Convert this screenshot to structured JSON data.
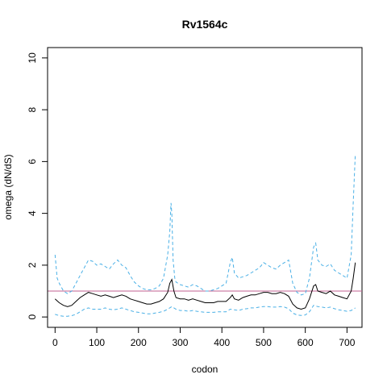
{
  "chart_data": {
    "type": "line",
    "title": "Rv1564c",
    "xlabel": "codon",
    "ylabel": "omega (dN/dS)",
    "xlim": [
      -18,
      736
    ],
    "ylim": [
      -0.4,
      10.4
    ],
    "xticks": [
      0,
      100,
      200,
      300,
      400,
      500,
      600,
      700
    ],
    "yticks": [
      0,
      2,
      4,
      6,
      8,
      10
    ],
    "reference_line": {
      "y": 1,
      "color": "#c06090"
    },
    "grid": false,
    "series": [
      {
        "role": "estimate",
        "color": "#000000",
        "style": "solid",
        "x": [
          0,
          10,
          20,
          30,
          40,
          50,
          60,
          70,
          80,
          90,
          100,
          110,
          120,
          130,
          140,
          150,
          160,
          170,
          180,
          190,
          200,
          210,
          220,
          230,
          240,
          250,
          260,
          270,
          275,
          280,
          285,
          290,
          300,
          310,
          320,
          330,
          340,
          350,
          360,
          370,
          380,
          390,
          400,
          410,
          420,
          425,
          430,
          440,
          450,
          460,
          470,
          480,
          490,
          500,
          510,
          520,
          530,
          540,
          550,
          560,
          570,
          580,
          590,
          600,
          610,
          620,
          625,
          630,
          640,
          650,
          660,
          670,
          680,
          690,
          700,
          710,
          715,
          720
        ],
        "y": [
          0.7,
          0.55,
          0.45,
          0.4,
          0.45,
          0.6,
          0.75,
          0.85,
          0.95,
          0.9,
          0.85,
          0.8,
          0.85,
          0.8,
          0.75,
          0.8,
          0.85,
          0.8,
          0.7,
          0.65,
          0.6,
          0.55,
          0.5,
          0.5,
          0.55,
          0.6,
          0.7,
          0.95,
          1.3,
          1.45,
          1.0,
          0.75,
          0.7,
          0.7,
          0.65,
          0.7,
          0.65,
          0.6,
          0.55,
          0.55,
          0.55,
          0.6,
          0.6,
          0.6,
          0.75,
          0.85,
          0.7,
          0.65,
          0.75,
          0.8,
          0.85,
          0.85,
          0.9,
          0.95,
          0.95,
          0.9,
          0.9,
          0.95,
          0.9,
          0.8,
          0.5,
          0.35,
          0.3,
          0.35,
          0.7,
          1.2,
          1.25,
          1.0,
          0.95,
          0.9,
          1.0,
          0.85,
          0.8,
          0.75,
          0.7,
          1.0,
          1.5,
          2.1
        ]
      },
      {
        "role": "upper bound",
        "color": "#4ab0e6",
        "style": "dashed",
        "x": [
          0,
          5,
          10,
          20,
          30,
          40,
          50,
          60,
          70,
          80,
          90,
          100,
          110,
          120,
          130,
          140,
          150,
          160,
          170,
          180,
          190,
          200,
          210,
          220,
          230,
          240,
          250,
          260,
          270,
          275,
          278,
          280,
          283,
          287,
          290,
          300,
          310,
          320,
          330,
          340,
          350,
          360,
          370,
          380,
          390,
          400,
          410,
          420,
          425,
          430,
          440,
          450,
          460,
          470,
          480,
          490,
          500,
          510,
          520,
          530,
          540,
          550,
          560,
          570,
          580,
          590,
          600,
          610,
          620,
          625,
          630,
          640,
          650,
          660,
          670,
          680,
          690,
          700,
          710,
          715,
          720
        ],
        "y": [
          2.4,
          1.5,
          1.3,
          1.0,
          0.9,
          1.0,
          1.3,
          1.6,
          1.9,
          2.2,
          2.15,
          2.0,
          2.05,
          1.95,
          1.85,
          2.05,
          2.2,
          2.0,
          1.9,
          1.6,
          1.35,
          1.2,
          1.1,
          1.05,
          1.05,
          1.1,
          1.2,
          1.5,
          2.4,
          3.3,
          4.4,
          4.0,
          2.2,
          1.5,
          1.35,
          1.25,
          1.2,
          1.15,
          1.25,
          1.2,
          1.1,
          1.0,
          1.0,
          1.05,
          1.1,
          1.2,
          1.3,
          2.1,
          2.3,
          1.7,
          1.5,
          1.55,
          1.6,
          1.7,
          1.8,
          1.9,
          2.1,
          2.0,
          1.9,
          1.85,
          2.0,
          2.1,
          2.2,
          1.3,
          0.95,
          0.85,
          0.9,
          1.5,
          2.7,
          2.85,
          2.2,
          2.0,
          1.95,
          2.05,
          1.8,
          1.7,
          1.6,
          1.5,
          2.4,
          4.4,
          6.3
        ]
      },
      {
        "role": "lower bound",
        "color": "#4ab0e6",
        "style": "dashed",
        "x": [
          0,
          10,
          20,
          30,
          40,
          50,
          60,
          70,
          80,
          90,
          100,
          110,
          120,
          130,
          140,
          150,
          160,
          170,
          180,
          190,
          200,
          210,
          220,
          230,
          240,
          250,
          260,
          270,
          280,
          290,
          300,
          310,
          320,
          330,
          340,
          350,
          360,
          370,
          380,
          390,
          400,
          410,
          420,
          430,
          440,
          450,
          460,
          470,
          480,
          490,
          500,
          510,
          520,
          530,
          540,
          550,
          560,
          570,
          580,
          590,
          600,
          610,
          620,
          630,
          640,
          650,
          660,
          670,
          680,
          690,
          700,
          710,
          720
        ],
        "y": [
          0.1,
          0.05,
          0.03,
          0.03,
          0.05,
          0.1,
          0.2,
          0.3,
          0.35,
          0.3,
          0.3,
          0.3,
          0.35,
          0.3,
          0.28,
          0.3,
          0.35,
          0.3,
          0.25,
          0.2,
          0.18,
          0.15,
          0.12,
          0.12,
          0.15,
          0.18,
          0.22,
          0.3,
          0.4,
          0.3,
          0.25,
          0.25,
          0.22,
          0.25,
          0.22,
          0.2,
          0.18,
          0.18,
          0.18,
          0.2,
          0.2,
          0.2,
          0.3,
          0.28,
          0.25,
          0.3,
          0.32,
          0.35,
          0.35,
          0.38,
          0.4,
          0.4,
          0.38,
          0.38,
          0.4,
          0.38,
          0.32,
          0.15,
          0.08,
          0.06,
          0.08,
          0.2,
          0.45,
          0.4,
          0.38,
          0.35,
          0.38,
          0.32,
          0.28,
          0.25,
          0.22,
          0.25,
          0.35
        ]
      }
    ]
  }
}
